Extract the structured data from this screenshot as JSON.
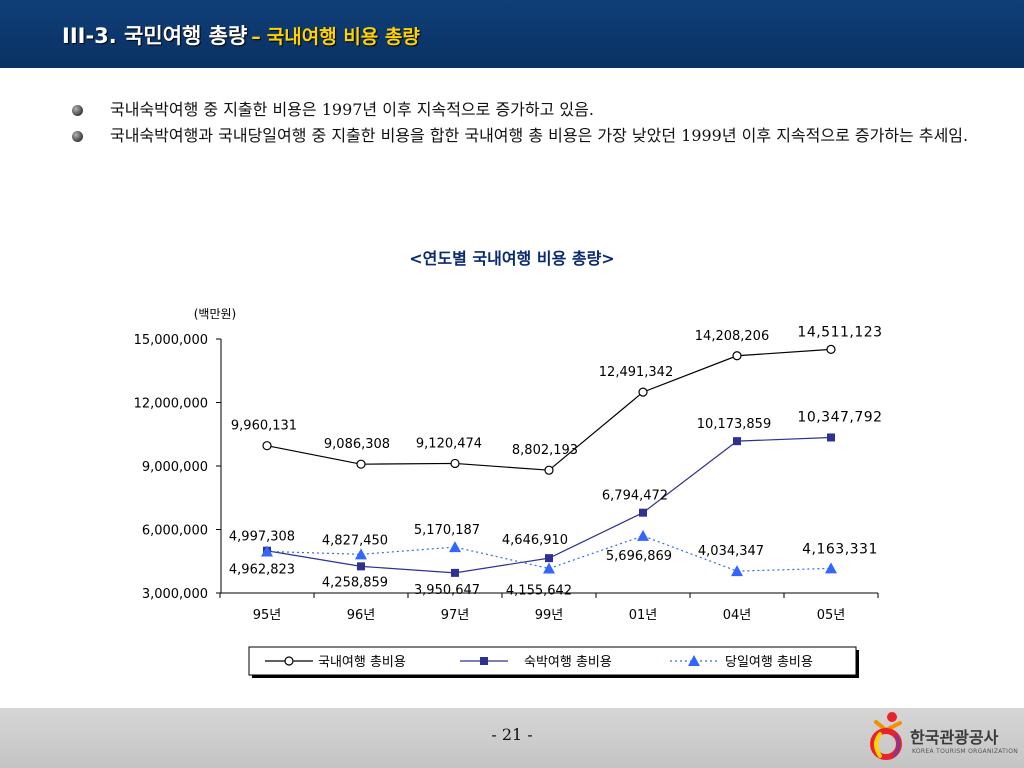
{
  "header": {
    "title": "III-3. 국민여행 총량",
    "dash": "–",
    "subtitle": "국내여행 비용 총량"
  },
  "bullets": [
    "국내숙박여행 중 지출한 비용은 1997년 이후 지속적으로 증가하고 있음.",
    "국내숙박여행과 국내당일여행 중 지출한 비용을 합한 국내여행 총 비용은 가장 낮았던 1999년 이후 지속적으로 증가하는 추세임."
  ],
  "colors": {
    "header_bg": "#0a3163",
    "header_title": "#ffffff",
    "header_subtitle": "#ffd200",
    "series_total": "#000000",
    "series_lodging": "#2e3192",
    "series_dayTrip": "#3366ff"
  },
  "chart_data": {
    "type": "line",
    "title": "<연도별 국내여행 비용 총량>",
    "unit_label": "(백만원)",
    "categories": [
      "95년",
      "96년",
      "97년",
      "99년",
      "01년",
      "04년",
      "05년"
    ],
    "ylim": [
      3000000,
      15000000
    ],
    "yticks": [
      "3,000,000",
      "6,000,000",
      "9,000,000",
      "12,000,000",
      "15,000,000"
    ],
    "grid": false,
    "legend_position": "bottom",
    "series": [
      {
        "name": "국내여행 총비용",
        "marker": "circle",
        "values": [
          9960131,
          9086308,
          9120474,
          8802193,
          12491342,
          14208206,
          14511123
        ],
        "labels": [
          "9,960,131",
          "9,086,308",
          "9,120,474",
          "8,802,193",
          "12,491,342",
          "14,208,206",
          "14,511,123"
        ]
      },
      {
        "name": "숙박여행 총비용",
        "marker": "square",
        "values": [
          4997308,
          4258859,
          3950647,
          4646910,
          6794472,
          10173859,
          10347792
        ],
        "labels": [
          "4,997,308",
          "4,258,859",
          "3,950,647",
          "4,646,910",
          "6,794,472",
          "10,173,859",
          "10,347,792"
        ]
      },
      {
        "name": "당일여행 총비용",
        "marker": "triangle",
        "values": [
          4962823,
          4827450,
          5170187,
          4155642,
          5696869,
          4034347,
          4163331
        ],
        "labels": [
          "4,962,823",
          "4,827,450",
          "5,170,187",
          "4,155,642",
          "5,696,869",
          "4,034,347",
          "4,163,331"
        ]
      }
    ]
  },
  "footer": {
    "page_number": "- 21 -",
    "logo_name": "한국관광공사",
    "logo_subtext": "KOREA TOURISM ORGANIZATION"
  }
}
